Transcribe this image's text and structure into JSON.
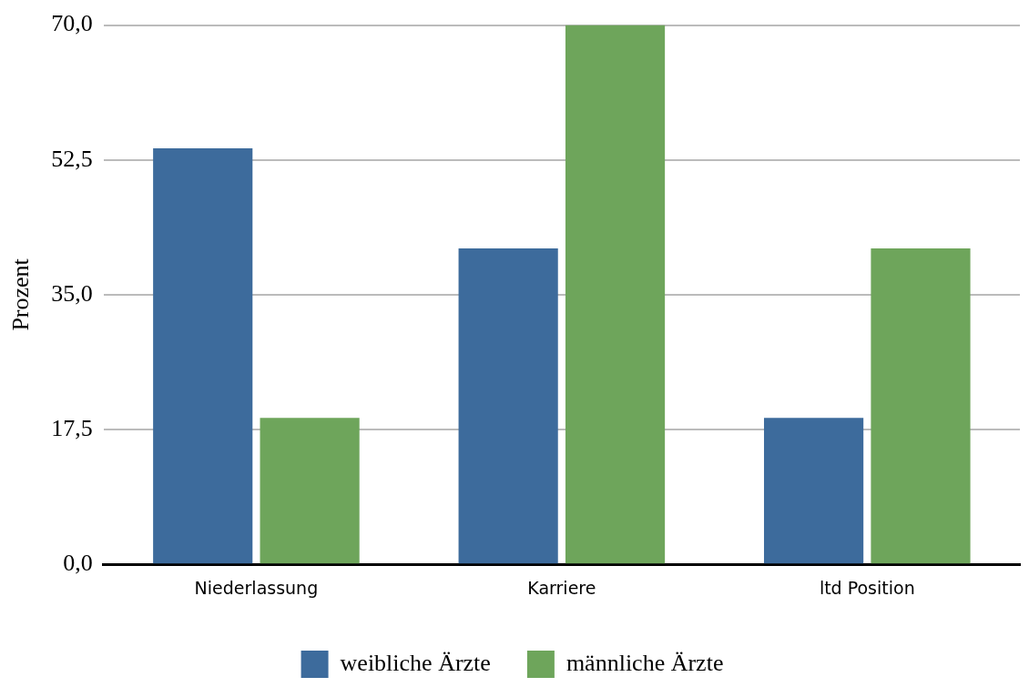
{
  "chart_data": {
    "type": "bar",
    "ylabel": "Prozent",
    "categories": [
      "Niederlassung",
      "Karriere",
      "ltd Position"
    ],
    "series": [
      {
        "name": "weibliche Ärzte",
        "color": "#3d6b9c",
        "values": [
          54,
          41,
          19
        ]
      },
      {
        "name": "männliche Ärzte",
        "color": "#6ea55b",
        "values": [
          19,
          70,
          41
        ]
      }
    ],
    "ylim": [
      0,
      70
    ],
    "yticks": [
      {
        "value": 0,
        "label": "0,0"
      },
      {
        "value": 17.5,
        "label": "17,5"
      },
      {
        "value": 35,
        "label": "35,0"
      },
      {
        "value": 52.5,
        "label": "52,5"
      },
      {
        "value": 70,
        "label": "70,0"
      }
    ],
    "grid": "y",
    "legend": "bottom"
  }
}
